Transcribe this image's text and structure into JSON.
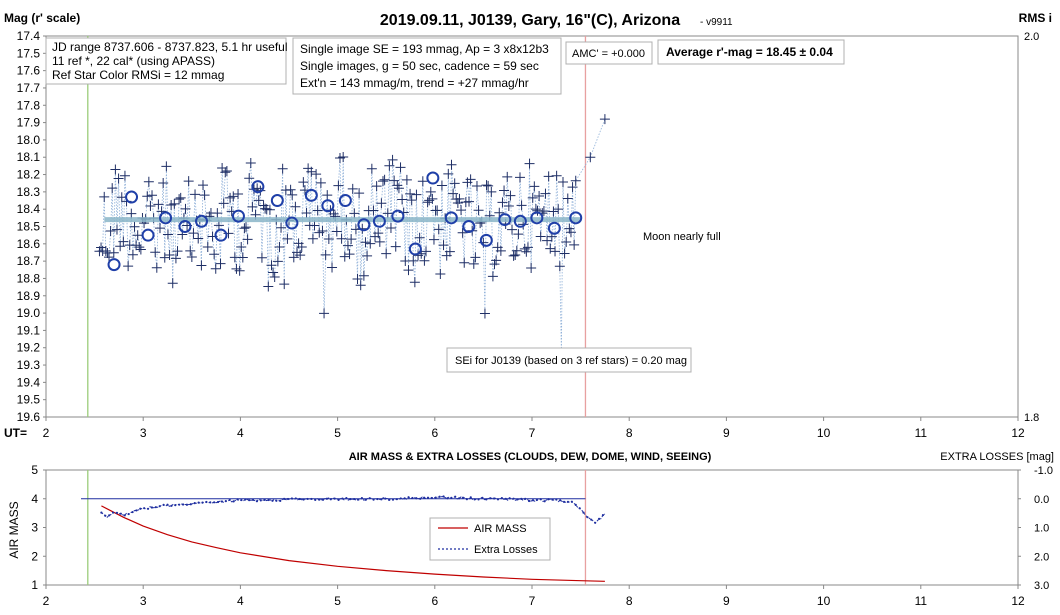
{
  "chart_data": [
    {
      "type": "scatter",
      "title": "2019.09.11, J0139, Gary, 16\"(C), Arizona",
      "version": "- v9911",
      "ylabel": "Mag (r' scale)",
      "ylabel_right": "RMS i",
      "xlabel": "UT=",
      "xlim": [
        2,
        12
      ],
      "ylim": [
        17.4,
        19.6
      ],
      "y_inverted": true,
      "x_ticks": [
        "2",
        "3",
        "4",
        "5",
        "6",
        "7",
        "8",
        "9",
        "10",
        "11",
        "12"
      ],
      "y_ticks": [
        "17.4",
        "17.5",
        "17.6",
        "17.7",
        "17.8",
        "17.9",
        "18.0",
        "18.1",
        "18.2",
        "18.3",
        "18.4",
        "18.5",
        "18.6",
        "18.7",
        "18.8",
        "18.9",
        "19.0",
        "19.1",
        "19.2",
        "19.3",
        "19.4",
        "19.5",
        "19.6"
      ],
      "right_ticks": [
        "2.0",
        "1.8"
      ],
      "vertical_lines": [
        {
          "x": 2.43,
          "color": "#9ccc7a"
        },
        {
          "x": 7.55,
          "color": "#e8a0a0"
        }
      ],
      "info_box1": [
        "JD range 8737.606 - 8737.823, 5.1 hr useful",
        "11 ref *, 22 cal* (using APASS)",
        "Ref Star Color RMSi = 12 mmag"
      ],
      "info_box2": [
        "Single image SE = 193 mmag, Ap = 3 x8x12b3",
        "Single images, g = 50 sec, cadence = 59 sec",
        "Ext'n = 143 mmag/m, trend = +27 mmag/hr"
      ],
      "amc_label": "AMC' = +0.000",
      "average_label": "Average r'-mag =  18.45 ± 0.04",
      "moon_note": "Moon nearly full",
      "sei_note": "SEi for J0139 (based on 3 ref stars) = 0.20 mag",
      "fit_line": {
        "x": [
          2.6,
          7.5
        ],
        "y": [
          18.46,
          18.46
        ]
      },
      "binned_points": {
        "x": [
          2.7,
          2.88,
          3.05,
          3.23,
          3.43,
          3.6,
          3.8,
          3.98,
          4.18,
          4.38,
          4.53,
          4.73,
          4.9,
          5.08,
          5.27,
          5.43,
          5.62,
          5.8,
          5.98,
          6.17,
          6.35,
          6.53,
          6.72,
          6.88,
          7.05,
          7.23,
          7.45
        ],
        "y": [
          18.72,
          18.33,
          18.55,
          18.45,
          18.5,
          18.47,
          18.55,
          18.44,
          18.27,
          18.35,
          18.48,
          18.32,
          18.38,
          18.35,
          18.49,
          18.47,
          18.44,
          18.63,
          18.22,
          18.45,
          18.5,
          18.58,
          18.46,
          18.47,
          18.45,
          18.51,
          18.45
        ]
      },
      "single_images_trend": {
        "x": [
          2.55,
          2.65,
          2.75,
          2.85,
          2.95,
          3.05,
          3.15,
          3.25,
          3.35,
          3.45,
          3.55,
          3.65,
          3.75,
          3.85,
          3.95,
          4.05,
          4.15,
          4.25,
          4.35,
          4.45,
          4.55,
          4.65,
          4.75,
          4.85,
          4.95,
          5.05,
          5.15,
          5.25,
          5.35,
          5.45,
          5.55,
          5.65,
          5.75,
          5.85,
          5.95,
          6.05,
          6.15,
          6.25,
          6.35,
          6.45,
          6.55,
          6.65,
          6.75,
          6.85,
          6.95,
          7.05,
          7.15,
          7.25,
          7.35,
          7.45,
          7.55,
          7.65,
          7.75
        ],
        "y": [
          18.55,
          18.5,
          18.35,
          18.45,
          18.5,
          18.55,
          18.4,
          18.45,
          18.6,
          18.55,
          18.45,
          18.5,
          18.55,
          18.4,
          18.45,
          18.5,
          18.35,
          18.45,
          18.5,
          18.4,
          18.5,
          18.45,
          18.4,
          18.5,
          18.45,
          18.35,
          18.5,
          18.55,
          18.45,
          18.5,
          18.4,
          18.45,
          18.5,
          18.6,
          18.3,
          18.5,
          18.45,
          18.4,
          18.5,
          18.55,
          18.55,
          18.45,
          18.5,
          18.45,
          18.4,
          18.5,
          18.45,
          18.4,
          18.5,
          18.3,
          18.25,
          18.1,
          17.88
        ]
      }
    },
    {
      "type": "line",
      "title": "AIR MASS & EXTRA LOSSES (CLOUDS, DEW, DOME, WIND, SEEING)",
      "ylabel": "AIR MASS",
      "ylabel_right": "EXTRA LOSSES [mag]",
      "xlim": [
        2,
        12
      ],
      "ylim": [
        1,
        5
      ],
      "ylim_right": [
        -1.0,
        3.0
      ],
      "right_inverted": true,
      "x_ticks": [
        "2",
        "3",
        "4",
        "5",
        "6",
        "7",
        "8",
        "9",
        "10",
        "11",
        "12"
      ],
      "y_ticks": [
        "1",
        "2",
        "3",
        "4",
        "5"
      ],
      "right_ticks": [
        "-1.0",
        "0.0",
        "1.0",
        "2.0",
        "3.0"
      ],
      "legend_position": "center",
      "series": [
        {
          "name": "AIR MASS",
          "color": "#c00000",
          "x": [
            2.57,
            2.8,
            3.0,
            3.25,
            3.5,
            3.75,
            4.0,
            4.5,
            5.0,
            5.5,
            6.0,
            6.5,
            7.0,
            7.5,
            7.75
          ],
          "y": [
            3.75,
            3.35,
            3.05,
            2.75,
            2.5,
            2.3,
            2.12,
            1.85,
            1.65,
            1.5,
            1.38,
            1.28,
            1.2,
            1.15,
            1.13
          ]
        },
        {
          "name": "Extra Losses",
          "color": "#1f2fa0",
          "style": "dashed-markers",
          "x": [
            2.57,
            2.62,
            2.7,
            2.8,
            2.9,
            3.0,
            3.2,
            3.4,
            3.6,
            3.8,
            4.0,
            4.3,
            4.6,
            4.9,
            5.2,
            5.5,
            5.8,
            6.0,
            6.2,
            6.5,
            6.8,
            7.0,
            7.2,
            7.4,
            7.45,
            7.55,
            7.65,
            7.7,
            7.75
          ],
          "y": [
            0.5,
            0.65,
            0.45,
            0.55,
            0.45,
            0.35,
            0.25,
            0.2,
            0.15,
            0.1,
            0.05,
            0.05,
            0.02,
            0.0,
            0.02,
            0.0,
            -0.02,
            -0.05,
            -0.03,
            0.0,
            0.02,
            0.05,
            0.05,
            0.1,
            0.2,
            0.55,
            0.85,
            0.7,
            0.5
          ]
        }
      ],
      "vertical_lines": [
        {
          "x": 2.43,
          "color": "#9ccc7a"
        },
        {
          "x": 7.55,
          "color": "#e8a0a0"
        }
      ],
      "reference_line": {
        "y": 4,
        "color": "#1f2fa0"
      }
    }
  ]
}
